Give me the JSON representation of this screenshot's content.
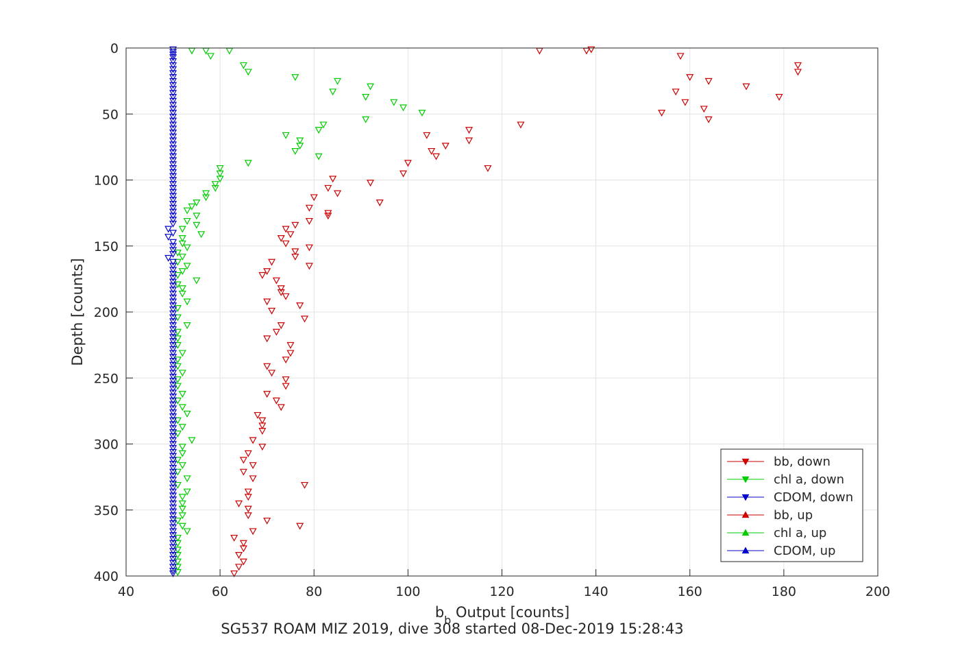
{
  "chart_data": {
    "type": "scatter",
    "xlabel": "b",
    "xlabel_sub": "b",
    "xlabel_rest": " Output [counts]",
    "ylabel": "Depth [counts]",
    "caption": "SG537 ROAM MIZ 2019, dive 308 started 08-Dec-2019 15:28:43",
    "xlim": [
      40,
      200
    ],
    "ylim": [
      0,
      400
    ],
    "y_reversed": true,
    "grid": true,
    "legend_position": "bottom-right",
    "x_ticks": [
      40,
      60,
      80,
      100,
      120,
      140,
      160,
      180,
      200
    ],
    "y_ticks": [
      0,
      50,
      100,
      150,
      200,
      250,
      300,
      350,
      400
    ],
    "series": [
      {
        "name": "bb, down",
        "color": "#cc0000",
        "marker": "triangle-down",
        "points": [
          [
            128,
            2
          ],
          [
            138,
            2
          ],
          [
            139,
            1
          ],
          [
            158,
            6
          ],
          [
            183,
            13
          ],
          [
            183,
            18
          ],
          [
            160,
            22
          ],
          [
            164,
            25
          ],
          [
            172,
            29
          ],
          [
            157,
            33
          ],
          [
            179,
            37
          ],
          [
            159,
            41
          ],
          [
            163,
            46
          ],
          [
            154,
            49
          ],
          [
            164,
            54
          ],
          [
            124,
            58
          ],
          [
            113,
            62
          ],
          [
            104,
            66
          ],
          [
            113,
            70
          ],
          [
            108,
            74
          ],
          [
            105,
            78
          ],
          [
            106,
            82
          ],
          [
            100,
            87
          ],
          [
            117,
            91
          ],
          [
            99,
            95
          ],
          [
            84,
            99
          ],
          [
            92,
            102
          ],
          [
            83,
            106
          ],
          [
            85,
            110
          ],
          [
            80,
            113
          ],
          [
            94,
            117
          ],
          [
            79,
            121
          ],
          [
            83,
            125
          ],
          [
            83,
            127
          ],
          [
            79,
            131
          ],
          [
            76,
            134
          ],
          [
            74,
            137
          ],
          [
            75,
            141
          ],
          [
            73,
            144
          ],
          [
            74,
            148
          ],
          [
            79,
            151
          ],
          [
            76,
            154
          ],
          [
            76,
            158
          ],
          [
            71,
            162
          ],
          [
            79,
            165
          ],
          [
            70,
            169
          ],
          [
            69,
            172
          ],
          [
            72,
            176
          ],
          [
            73,
            182
          ],
          [
            73,
            185
          ],
          [
            74,
            188
          ],
          [
            70,
            192
          ],
          [
            77,
            195
          ],
          [
            71,
            199
          ],
          [
            78,
            205
          ],
          [
            73,
            210
          ],
          [
            72,
            215
          ],
          [
            70,
            220
          ],
          [
            75,
            225
          ],
          [
            75,
            231
          ],
          [
            74,
            236
          ],
          [
            70,
            241
          ],
          [
            71,
            246
          ],
          [
            74,
            251
          ],
          [
            74,
            256
          ],
          [
            70,
            262
          ],
          [
            72,
            267
          ],
          [
            73,
            272
          ],
          [
            68,
            278
          ],
          [
            69,
            282
          ],
          [
            69,
            286
          ],
          [
            69,
            290
          ],
          [
            67,
            297
          ],
          [
            69,
            302
          ],
          [
            66,
            307
          ],
          [
            65,
            312
          ],
          [
            67,
            316
          ],
          [
            65,
            321
          ],
          [
            67,
            326
          ],
          [
            78,
            331
          ],
          [
            66,
            336
          ],
          [
            66,
            340
          ],
          [
            64,
            345
          ],
          [
            66,
            349
          ],
          [
            66,
            354
          ],
          [
            70,
            358
          ],
          [
            77,
            362
          ],
          [
            67,
            366
          ],
          [
            63,
            371
          ],
          [
            65,
            375
          ],
          [
            65,
            379
          ],
          [
            64,
            384
          ],
          [
            65,
            389
          ],
          [
            64,
            393
          ],
          [
            63,
            398
          ]
        ]
      },
      {
        "name": "chl a, down",
        "color": "#00cc00",
        "marker": "triangle-down",
        "points": [
          [
            54,
            2
          ],
          [
            57,
            2
          ],
          [
            62,
            2
          ],
          [
            58,
            6
          ],
          [
            65,
            13
          ],
          [
            66,
            18
          ],
          [
            76,
            22
          ],
          [
            85,
            25
          ],
          [
            92,
            29
          ],
          [
            84,
            33
          ],
          [
            91,
            37
          ],
          [
            97,
            41
          ],
          [
            99,
            45
          ],
          [
            103,
            49
          ],
          [
            91,
            54
          ],
          [
            82,
            58
          ],
          [
            81,
            62
          ],
          [
            74,
            66
          ],
          [
            77,
            70
          ],
          [
            77,
            74
          ],
          [
            76,
            78
          ],
          [
            81,
            82
          ],
          [
            66,
            87
          ],
          [
            60,
            91
          ],
          [
            60,
            95
          ],
          [
            60,
            99
          ],
          [
            59,
            103
          ],
          [
            59,
            106
          ],
          [
            57,
            110
          ],
          [
            57,
            113
          ],
          [
            55,
            117
          ],
          [
            54,
            120
          ],
          [
            53,
            123
          ],
          [
            55,
            127
          ],
          [
            53,
            131
          ],
          [
            55,
            134
          ],
          [
            52,
            137
          ],
          [
            56,
            141
          ],
          [
            52,
            144
          ],
          [
            52,
            148
          ],
          [
            53,
            151
          ],
          [
            51,
            155
          ],
          [
            52,
            158
          ],
          [
            51,
            162
          ],
          [
            53,
            165
          ],
          [
            52,
            169
          ],
          [
            51,
            172
          ],
          [
            55,
            176
          ],
          [
            51,
            179
          ],
          [
            52,
            182
          ],
          [
            52,
            186
          ],
          [
            53,
            192
          ],
          [
            51,
            197
          ],
          [
            51,
            204
          ],
          [
            53,
            210
          ],
          [
            51,
            215
          ],
          [
            51,
            220
          ],
          [
            51,
            225
          ],
          [
            52,
            231
          ],
          [
            51,
            236
          ],
          [
            51,
            241
          ],
          [
            52,
            246
          ],
          [
            51,
            251
          ],
          [
            51,
            256
          ],
          [
            52,
            262
          ],
          [
            51,
            267
          ],
          [
            52,
            272
          ],
          [
            53,
            277
          ],
          [
            51,
            282
          ],
          [
            52,
            287
          ],
          [
            51,
            292
          ],
          [
            54,
            297
          ],
          [
            52,
            302
          ],
          [
            52,
            307
          ],
          [
            51,
            312
          ],
          [
            52,
            316
          ],
          [
            51,
            321
          ],
          [
            53,
            326
          ],
          [
            51,
            331
          ],
          [
            53,
            336
          ],
          [
            52,
            340
          ],
          [
            52,
            345
          ],
          [
            52,
            349
          ],
          [
            52,
            354
          ],
          [
            51,
            358
          ],
          [
            52,
            362
          ],
          [
            53,
            366
          ],
          [
            51,
            371
          ],
          [
            51,
            375
          ],
          [
            51,
            380
          ],
          [
            51,
            384
          ],
          [
            51,
            389
          ],
          [
            51,
            393
          ],
          [
            51,
            397
          ]
        ]
      },
      {
        "name": "CDOM, down",
        "color": "#0000cc",
        "marker": "triangle-down",
        "points": [
          [
            50,
            1
          ],
          [
            50,
            3
          ],
          [
            50,
            5
          ],
          [
            50,
            7
          ],
          [
            50,
            10
          ],
          [
            50,
            13
          ],
          [
            50,
            16
          ],
          [
            50,
            19
          ],
          [
            50,
            22
          ],
          [
            50,
            25
          ],
          [
            50,
            28
          ],
          [
            50,
            31
          ],
          [
            50,
            34
          ],
          [
            50,
            37
          ],
          [
            50,
            40
          ],
          [
            50,
            43
          ],
          [
            50,
            46
          ],
          [
            50,
            49
          ],
          [
            50,
            52
          ],
          [
            50,
            55
          ],
          [
            50,
            58
          ],
          [
            50,
            61
          ],
          [
            50,
            64
          ],
          [
            50,
            67
          ],
          [
            50,
            70
          ],
          [
            50,
            73
          ],
          [
            50,
            76
          ],
          [
            50,
            79
          ],
          [
            50,
            82
          ],
          [
            50,
            85
          ],
          [
            50,
            88
          ],
          [
            50,
            91
          ],
          [
            50,
            94
          ],
          [
            50,
            97
          ],
          [
            50,
            100
          ],
          [
            50,
            103
          ],
          [
            50,
            106
          ],
          [
            50,
            109
          ],
          [
            50,
            112
          ],
          [
            50,
            115
          ],
          [
            50,
            118
          ],
          [
            50,
            121
          ],
          [
            50,
            124
          ],
          [
            50,
            127
          ],
          [
            50,
            130
          ],
          [
            50,
            133
          ],
          [
            49,
            137
          ],
          [
            50,
            140
          ],
          [
            49,
            143
          ],
          [
            50,
            147
          ],
          [
            50,
            150
          ],
          [
            50,
            153
          ],
          [
            50,
            156
          ],
          [
            49,
            159
          ],
          [
            50,
            162
          ],
          [
            50,
            165
          ],
          [
            50,
            168
          ],
          [
            50,
            171
          ],
          [
            50,
            174
          ],
          [
            50,
            177
          ],
          [
            50,
            180
          ],
          [
            50,
            183
          ],
          [
            50,
            186
          ],
          [
            50,
            189
          ],
          [
            50,
            192
          ],
          [
            50,
            195
          ],
          [
            50,
            198
          ],
          [
            50,
            201
          ],
          [
            50,
            204
          ],
          [
            50,
            207
          ],
          [
            50,
            210
          ],
          [
            50,
            213
          ],
          [
            50,
            216
          ],
          [
            50,
            219
          ],
          [
            50,
            222
          ],
          [
            50,
            225
          ],
          [
            50,
            228
          ],
          [
            50,
            231
          ],
          [
            50,
            234
          ],
          [
            50,
            237
          ],
          [
            50,
            240
          ],
          [
            50,
            243
          ],
          [
            50,
            246
          ],
          [
            50,
            249
          ],
          [
            50,
            252
          ],
          [
            50,
            255
          ],
          [
            50,
            258
          ],
          [
            50,
            261
          ],
          [
            50,
            264
          ],
          [
            50,
            267
          ],
          [
            50,
            270
          ],
          [
            50,
            273
          ],
          [
            50,
            276
          ],
          [
            50,
            279
          ],
          [
            50,
            282
          ],
          [
            50,
            285
          ],
          [
            50,
            288
          ],
          [
            50,
            291
          ],
          [
            50,
            294
          ],
          [
            50,
            297
          ],
          [
            50,
            300
          ],
          [
            50,
            303
          ],
          [
            50,
            306
          ],
          [
            50,
            309
          ],
          [
            50,
            312
          ],
          [
            50,
            315
          ],
          [
            50,
            318
          ],
          [
            50,
            321
          ],
          [
            50,
            324
          ],
          [
            50,
            327
          ],
          [
            50,
            330
          ],
          [
            50,
            333
          ],
          [
            50,
            336
          ],
          [
            50,
            339
          ],
          [
            50,
            342
          ],
          [
            50,
            345
          ],
          [
            50,
            348
          ],
          [
            50,
            351
          ],
          [
            50,
            354
          ],
          [
            50,
            357
          ],
          [
            50,
            360
          ],
          [
            50,
            363
          ],
          [
            50,
            366
          ],
          [
            50,
            369
          ],
          [
            50,
            372
          ],
          [
            50,
            375
          ],
          [
            50,
            378
          ],
          [
            50,
            381
          ],
          [
            50,
            384
          ],
          [
            50,
            387
          ],
          [
            50,
            390
          ],
          [
            50,
            393
          ],
          [
            50,
            396
          ],
          [
            50,
            398
          ]
        ]
      },
      {
        "name": "bb, up",
        "color": "#cc0000",
        "marker": "triangle-up",
        "points": []
      },
      {
        "name": "chl a, up",
        "color": "#00cc00",
        "marker": "triangle-up",
        "points": []
      },
      {
        "name": "CDOM, up",
        "color": "#0000cc",
        "marker": "triangle-up",
        "points": []
      }
    ]
  }
}
